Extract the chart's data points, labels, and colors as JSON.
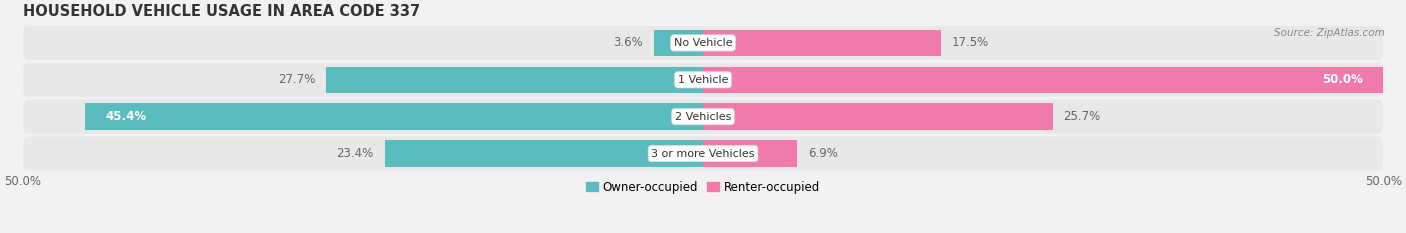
{
  "title": "HOUSEHOLD VEHICLE USAGE IN AREA CODE 337",
  "source_text": "Source: ZipAtlas.com",
  "categories": [
    "No Vehicle",
    "1 Vehicle",
    "2 Vehicles",
    "3 or more Vehicles"
  ],
  "owner_values": [
    3.6,
    27.7,
    45.4,
    23.4
  ],
  "renter_values": [
    17.5,
    50.0,
    25.7,
    6.9
  ],
  "owner_color": "#5bbcbf",
  "renter_color": "#f07aaa",
  "background_color": "#f0f0f0",
  "xlim": [
    -50,
    50
  ],
  "x_left_label": "50.0%",
  "x_right_label": "50.0%",
  "legend_owner": "Owner-occupied",
  "legend_renter": "Renter-occupied",
  "bar_height": 0.72,
  "row_bg_color": "#eeeeee",
  "row_gap_color": "#f5f5f5",
  "title_fontsize": 10.5,
  "label_fontsize": 8.5,
  "category_fontsize": 8.0,
  "inside_label_color": "#ffffff",
  "outside_label_color": "#666666"
}
